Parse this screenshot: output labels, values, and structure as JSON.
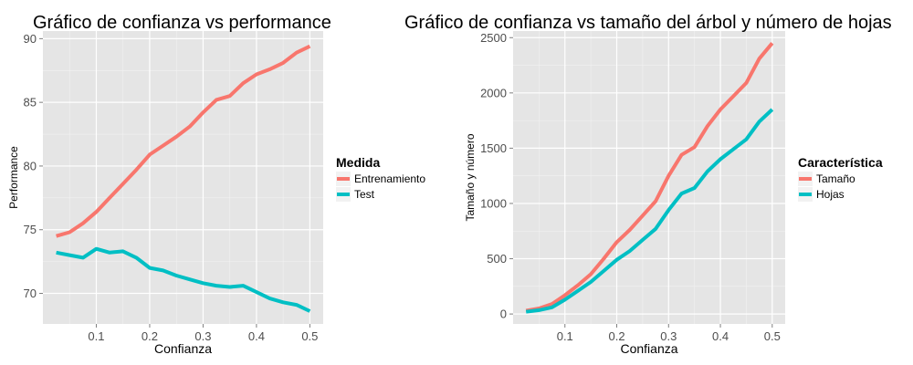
{
  "chart_data": [
    {
      "type": "line",
      "title": "Gráfico de confianza vs performance",
      "xlabel": "Confianza",
      "ylabel": "Performance",
      "x": [
        0.025,
        0.05,
        0.075,
        0.1,
        0.125,
        0.15,
        0.175,
        0.2,
        0.225,
        0.25,
        0.275,
        0.3,
        0.325,
        0.35,
        0.375,
        0.4,
        0.425,
        0.45,
        0.475,
        0.5
      ],
      "xlim": [
        0.0,
        0.525
      ],
      "ylim": [
        67.6,
        90.6
      ],
      "x_ticks": [
        0.1,
        0.2,
        0.3,
        0.4,
        0.5
      ],
      "x_tick_labels": [
        "0.1",
        "0.2",
        "0.3",
        "0.4",
        "0.5"
      ],
      "y_ticks": [
        70,
        75,
        80,
        85,
        90
      ],
      "y_tick_labels": [
        "70",
        "75",
        "80",
        "85",
        "90"
      ],
      "legend_title": "Medida",
      "legend_position": "right",
      "grid": true,
      "series": [
        {
          "name": "Entrenamiento",
          "color": "#F8766D",
          "values": [
            74.5,
            74.8,
            75.5,
            76.4,
            77.5,
            78.6,
            79.7,
            80.9,
            81.6,
            82.3,
            83.1,
            84.2,
            85.2,
            85.5,
            86.5,
            87.2,
            87.6,
            88.1,
            88.9,
            89.4
          ]
        },
        {
          "name": "Test",
          "color": "#00BFC4",
          "values": [
            73.2,
            73.0,
            72.8,
            73.5,
            73.2,
            73.3,
            72.8,
            72.0,
            71.8,
            71.4,
            71.1,
            70.8,
            70.6,
            70.5,
            70.6,
            70.1,
            69.6,
            69.3,
            69.1,
            68.6
          ]
        }
      ]
    },
    {
      "type": "line",
      "title": "Gráfico de confianza vs tamaño del árbol y número de hojas",
      "xlabel": "Confianza",
      "ylabel": "Tamaño y número",
      "x": [
        0.025,
        0.05,
        0.075,
        0.1,
        0.125,
        0.15,
        0.175,
        0.2,
        0.225,
        0.25,
        0.275,
        0.3,
        0.325,
        0.35,
        0.375,
        0.4,
        0.425,
        0.45,
        0.475,
        0.5
      ],
      "xlim": [
        0.0,
        0.525
      ],
      "ylim": [
        -90,
        2560
      ],
      "x_ticks": [
        0.1,
        0.2,
        0.3,
        0.4,
        0.5
      ],
      "x_tick_labels": [
        "0.1",
        "0.2",
        "0.3",
        "0.4",
        "0.5"
      ],
      "y_ticks": [
        0,
        500,
        1000,
        1500,
        2000,
        2500
      ],
      "y_tick_labels": [
        "0",
        "500",
        "1000",
        "1500",
        "2000",
        "2500"
      ],
      "legend_title": "Característica",
      "legend_position": "right",
      "grid": true,
      "series": [
        {
          "name": "Tamaño",
          "color": "#F8766D",
          "values": [
            30,
            50,
            90,
            170,
            260,
            360,
            500,
            650,
            760,
            890,
            1020,
            1250,
            1440,
            1510,
            1700,
            1850,
            1970,
            2090,
            2310,
            2450
          ]
        },
        {
          "name": "Hojas",
          "color": "#00BFC4",
          "values": [
            20,
            35,
            60,
            130,
            210,
            290,
            390,
            490,
            570,
            670,
            770,
            940,
            1090,
            1140,
            1290,
            1400,
            1490,
            1580,
            1740,
            1850
          ]
        }
      ]
    }
  ]
}
